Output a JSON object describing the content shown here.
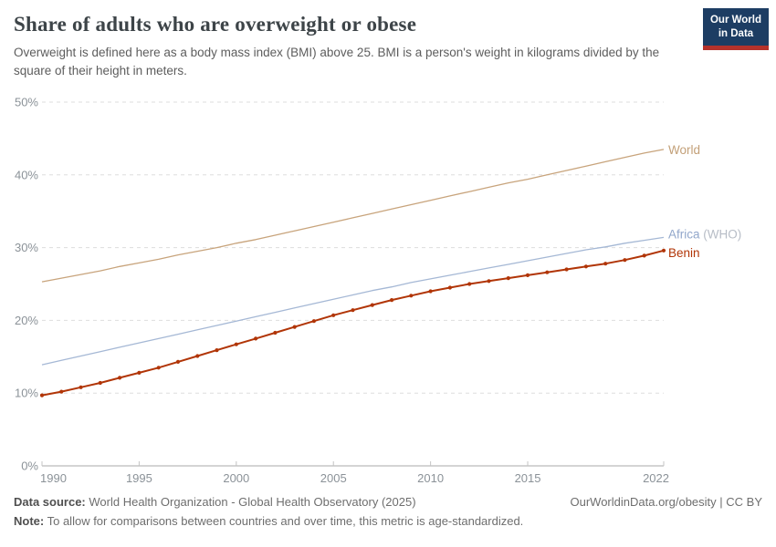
{
  "header": {
    "title": "Share of adults who are overweight or obese",
    "subtitle": "Overweight is defined here as a body mass index (BMI) above 25. BMI is a person's weight in kilograms divided by the square of their height in meters.",
    "logo_line1": "Our World",
    "logo_line2": "in Data",
    "logo_bg": "#1d3d63",
    "logo_stripe": "#b5322b"
  },
  "chart_data": {
    "type": "line",
    "title": "Share of adults who are overweight or obese",
    "xlabel": "",
    "ylabel": "",
    "ylim": [
      0,
      50
    ],
    "xlim": [
      1990,
      2022
    ],
    "grid": true,
    "grid_style": "dashed",
    "legend_position": "right-of-line-end",
    "y_ticks": [
      0,
      10,
      20,
      30,
      40,
      50
    ],
    "y_tick_suffix": "%",
    "x_ticks": [
      1990,
      1995,
      2000,
      2005,
      2010,
      2015,
      2022
    ],
    "x": [
      1990,
      1991,
      1992,
      1993,
      1994,
      1995,
      1996,
      1997,
      1998,
      1999,
      2000,
      2001,
      2002,
      2003,
      2004,
      2005,
      2006,
      2007,
      2008,
      2009,
      2010,
      2011,
      2012,
      2013,
      2014,
      2015,
      2016,
      2017,
      2018,
      2019,
      2020,
      2021,
      2022
    ],
    "series": [
      {
        "name": "World",
        "suffix": "",
        "color": "#c8a47c",
        "label_color": "#c3a078",
        "markers": false,
        "label_dy": 0,
        "values": [
          25.3,
          25.8,
          26.3,
          26.8,
          27.4,
          27.9,
          28.4,
          29.0,
          29.5,
          30.0,
          30.6,
          31.1,
          31.7,
          32.3,
          32.9,
          33.5,
          34.1,
          34.7,
          35.3,
          35.9,
          36.5,
          37.1,
          37.7,
          38.3,
          38.9,
          39.4,
          40.0,
          40.6,
          41.2,
          41.8,
          42.4,
          43.0,
          43.5
        ]
      },
      {
        "name": "Africa",
        "suffix": " (WHO)",
        "color": "#a5b8d5",
        "label_color": "#92a7cb",
        "suffix_color": "#b7bdc6",
        "markers": false,
        "label_dy": -4,
        "values": [
          13.9,
          14.5,
          15.1,
          15.7,
          16.3,
          16.9,
          17.5,
          18.1,
          18.7,
          19.3,
          19.9,
          20.5,
          21.1,
          21.7,
          22.3,
          22.9,
          23.5,
          24.1,
          24.6,
          25.2,
          25.7,
          26.2,
          26.7,
          27.2,
          27.7,
          28.2,
          28.7,
          29.2,
          29.7,
          30.1,
          30.6,
          31.0,
          31.4
        ]
      },
      {
        "name": "Benin",
        "suffix": "",
        "color": "#b13507",
        "label_color": "#b13507",
        "markers": true,
        "label_dy": 2,
        "values": [
          9.7,
          10.2,
          10.8,
          11.4,
          12.1,
          12.8,
          13.5,
          14.3,
          15.1,
          15.9,
          16.7,
          17.5,
          18.3,
          19.1,
          19.9,
          20.7,
          21.4,
          22.1,
          22.8,
          23.4,
          24.0,
          24.5,
          25.0,
          25.4,
          25.8,
          26.2,
          26.6,
          27.0,
          27.4,
          27.8,
          28.3,
          28.9,
          29.6
        ]
      }
    ]
  },
  "footer": {
    "datasource_label": "Data source:",
    "datasource_value": "World Health Organization - Global Health Observatory (2025)",
    "link_text": "OurWorldinData.org/obesity | CC BY",
    "note_label": "Note:",
    "note_value": "To allow for comparisons between countries and over time, this metric is age-standardized."
  }
}
